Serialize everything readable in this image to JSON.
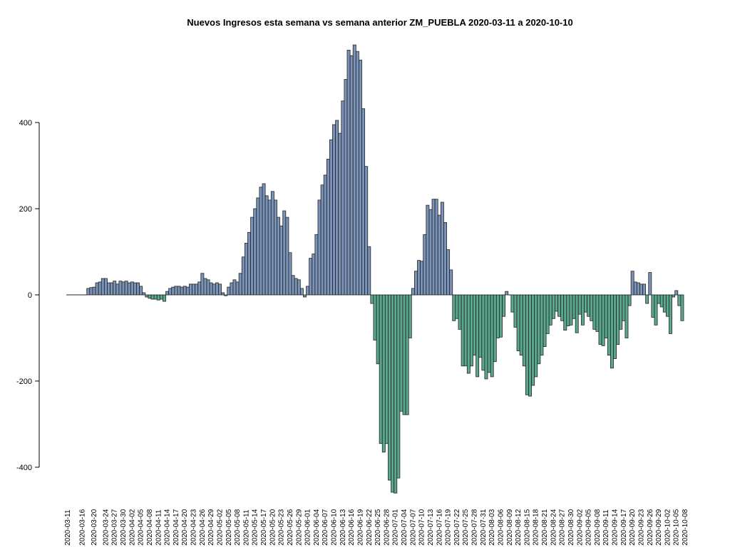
{
  "chart_data": {
    "type": "bar",
    "title": "Nuevos Ingresos esta semana vs semana anterior ZM_PUEBLA 2020-03-11 a 2020-10-10",
    "xlabel": "",
    "ylabel": "",
    "ylim": [
      -460,
      580
    ],
    "y_ticks": [
      -400,
      -200,
      0,
      200,
      400
    ],
    "start_date": "2020-03-11",
    "x_tick_labels": [
      "2020-03-11",
      "2020-03-16",
      "2020-03-20",
      "2020-03-24",
      "2020-03-27",
      "2020-03-30",
      "2020-04-02",
      "2020-04-05",
      "2020-04-08",
      "2020-04-11",
      "2020-04-14",
      "2020-04-17",
      "2020-04-20",
      "2020-04-23",
      "2020-04-26",
      "2020-04-29",
      "2020-05-02",
      "2020-05-05",
      "2020-05-08",
      "2020-05-11",
      "2020-05-14",
      "2020-05-17",
      "2020-05-20",
      "2020-05-23",
      "2020-05-26",
      "2020-05-29",
      "2020-06-01",
      "2020-06-04",
      "2020-06-07",
      "2020-06-10",
      "2020-06-13",
      "2020-06-16",
      "2020-06-19",
      "2020-06-22",
      "2020-06-25",
      "2020-06-28",
      "2020-07-01",
      "2020-07-04",
      "2020-07-07",
      "2020-07-10",
      "2020-07-13",
      "2020-07-16",
      "2020-07-19",
      "2020-07-22",
      "2020-07-25",
      "2020-07-28",
      "2020-07-31",
      "2020-08-03",
      "2020-08-06",
      "2020-08-09",
      "2020-08-12",
      "2020-08-15",
      "2020-08-18",
      "2020-08-21",
      "2020-08-24",
      "2020-08-27",
      "2020-08-30",
      "2020-09-02",
      "2020-09-05",
      "2020-09-08",
      "2020-09-11",
      "2020-09-14",
      "2020-09-17",
      "2020-09-20",
      "2020-09-23",
      "2020-09-26",
      "2020-09-29",
      "2020-10-02",
      "2020-10-05",
      "2020-10-08"
    ],
    "positive_color": "#7a93b8",
    "negative_color": "#5aa88e",
    "border_color": "#222222",
    "values": [
      0,
      0,
      0,
      0,
      0,
      0,
      0,
      15,
      17,
      18,
      28,
      30,
      38,
      38,
      28,
      28,
      32,
      25,
      32,
      30,
      32,
      28,
      30,
      28,
      28,
      20,
      5,
      -5,
      -8,
      -10,
      -10,
      -12,
      -10,
      -15,
      8,
      15,
      18,
      20,
      20,
      18,
      20,
      18,
      25,
      25,
      25,
      30,
      50,
      38,
      35,
      28,
      25,
      28,
      25,
      5,
      -2,
      18,
      28,
      35,
      30,
      50,
      88,
      120,
      145,
      180,
      200,
      225,
      250,
      258,
      230,
      220,
      240,
      220,
      180,
      160,
      195,
      180,
      98,
      45,
      38,
      35,
      15,
      -5,
      20,
      85,
      95,
      140,
      220,
      255,
      278,
      315,
      360,
      395,
      405,
      375,
      450,
      500,
      568,
      555,
      580,
      565,
      545,
      432,
      298,
      112,
      -20,
      -105,
      -160,
      -345,
      -365,
      -345,
      -430,
      -458,
      -460,
      -425,
      -270,
      -278,
      -278,
      -100,
      15,
      55,
      80,
      78,
      140,
      208,
      198,
      222,
      222,
      185,
      215,
      168,
      105,
      58,
      -60,
      -55,
      -80,
      -165,
      -165,
      -182,
      -165,
      -140,
      -190,
      -145,
      -175,
      -195,
      -180,
      -190,
      -155,
      -100,
      -98,
      -50,
      8,
      0,
      -40,
      -75,
      -130,
      -140,
      -165,
      -232,
      -235,
      -210,
      -190,
      -160,
      -140,
      -120,
      -90,
      -70,
      -55,
      -38,
      -50,
      -60,
      -82,
      -72,
      -70,
      -55,
      -88,
      -45,
      -70,
      -40,
      -50,
      -60,
      -80,
      -85,
      -115,
      -118,
      -100,
      -140,
      -170,
      -148,
      -115,
      -80,
      -60,
      -100,
      -25,
      55,
      30,
      28,
      25,
      25,
      -20,
      52,
      -52,
      -70,
      -20,
      -28,
      -40,
      -50,
      -90,
      -5,
      10,
      -25,
      -60
    ]
  }
}
